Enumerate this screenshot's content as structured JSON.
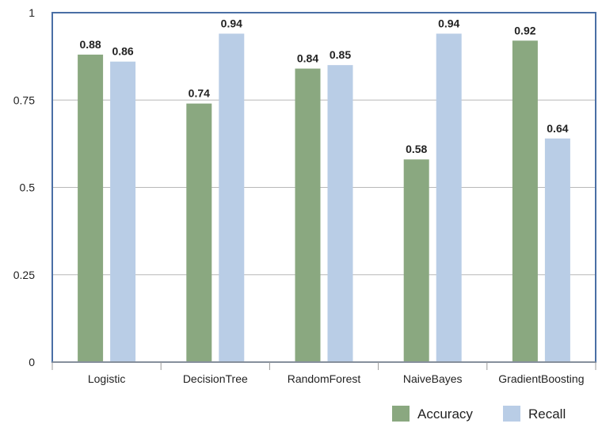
{
  "chart_data": {
    "type": "bar",
    "categories": [
      "Logistic",
      "DecisionTree",
      "RandomForest",
      "NaiveBayes",
      "GradientBoosting"
    ],
    "series": [
      {
        "name": "Accuracy",
        "color": "#8aa880",
        "values": [
          0.88,
          0.74,
          0.84,
          0.58,
          0.92
        ]
      },
      {
        "name": "Recall",
        "color": "#b9cde6",
        "values": [
          0.86,
          0.94,
          0.85,
          0.94,
          0.64
        ]
      }
    ],
    "value_labels": [
      [
        "0.88",
        "0.74",
        "0.84",
        "0.58",
        "0.92"
      ],
      [
        "0.86",
        "0.94",
        "0.85",
        "0.94",
        "0.64"
      ]
    ],
    "yticks": [
      0,
      0.25,
      0.5,
      0.75,
      1
    ],
    "ytick_labels": [
      "0",
      "0.25",
      "0.5",
      "0.75",
      "1"
    ],
    "ylim": [
      0,
      1
    ],
    "grid": true,
    "legend_position": "bottom-right",
    "frame_color": "#4a6fa5",
    "grid_color": "#b8b8b8"
  }
}
